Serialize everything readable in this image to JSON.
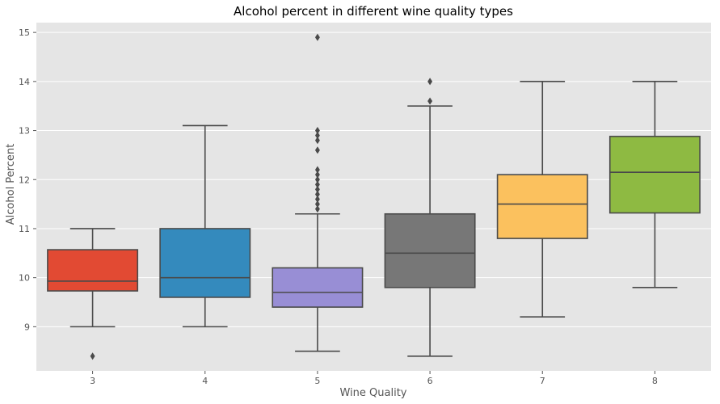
{
  "chart_data": {
    "type": "box",
    "title": "Alcohol percent in different wine quality types",
    "xlabel": "Wine Quality",
    "ylabel": "Alcohol Percent",
    "ylim": [
      8.1,
      15.2
    ],
    "yticks": [
      9,
      10,
      11,
      12,
      13,
      14,
      15
    ],
    "grid": true,
    "categories": [
      "3",
      "4",
      "5",
      "6",
      "7",
      "8"
    ],
    "boxes": [
      {
        "category": "3",
        "whisker_low": 9.0,
        "q1": 9.73,
        "median": 9.93,
        "q3": 10.57,
        "whisker_high": 11.0,
        "outliers": [
          8.4
        ],
        "color": "#E24A33"
      },
      {
        "category": "4",
        "whisker_low": 9.0,
        "q1": 9.6,
        "median": 10.0,
        "q3": 11.0,
        "whisker_high": 13.1,
        "outliers": [],
        "color": "#348ABD"
      },
      {
        "category": "5",
        "whisker_low": 8.5,
        "q1": 9.4,
        "median": 9.7,
        "q3": 10.2,
        "whisker_high": 11.3,
        "outliers": [
          11.4,
          11.5,
          11.6,
          11.7,
          11.8,
          11.9,
          12.0,
          12.1,
          12.2,
          12.6,
          12.8,
          12.9,
          13.0,
          14.9
        ],
        "color": "#988ED5"
      },
      {
        "category": "6",
        "whisker_low": 8.4,
        "q1": 9.8,
        "median": 10.5,
        "q3": 11.3,
        "whisker_high": 13.5,
        "outliers": [
          13.6,
          14.0
        ],
        "color": "#777777"
      },
      {
        "category": "7",
        "whisker_low": 9.2,
        "q1": 10.8,
        "median": 11.5,
        "q3": 12.1,
        "whisker_high": 14.0,
        "outliers": [],
        "color": "#FBC15E"
      },
      {
        "category": "8",
        "whisker_low": 9.8,
        "q1": 11.32,
        "median": 12.15,
        "q3": 12.88,
        "whisker_high": 14.0,
        "outliers": [],
        "color": "#8EBA42"
      }
    ],
    "plot_background": "#E5E5E5",
    "grid_color": "#FFFFFF",
    "line_color": "#4A4A4A"
  }
}
